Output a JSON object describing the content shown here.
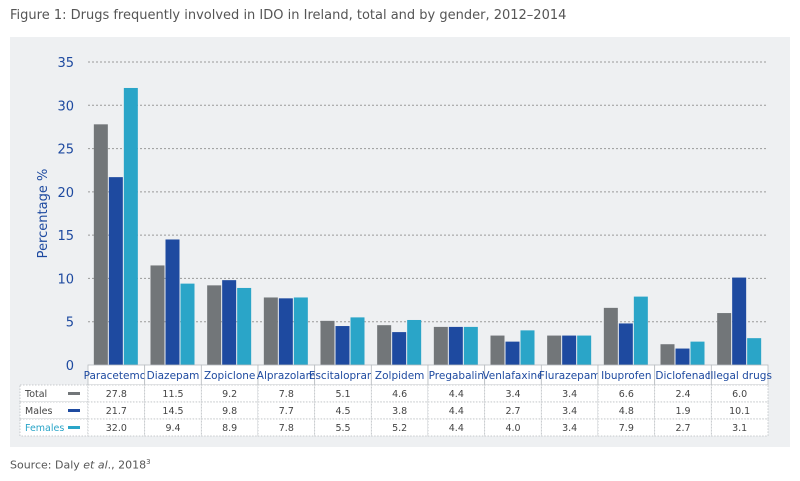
{
  "title": "Figure 1: Drugs frequently involved in IDO in Ireland, total and by gender, 2012–2014",
  "source": {
    "prefix": "Source: Daly ",
    "italic": "et al",
    "suffix": "., 2018",
    "superscript": "3"
  },
  "colors": {
    "Total": "#727679",
    "Males": "#1e4aa0",
    "Females": "#2aa5c8",
    "grid": "#9a9a9a",
    "axis_text": "#1e4aa0"
  },
  "chart_data": {
    "type": "bar",
    "ylabel": "Percentage %",
    "ylim": [
      0,
      35
    ],
    "yticks": [
      0,
      5,
      10,
      15,
      20,
      25,
      30,
      35
    ],
    "grid": true,
    "categories": [
      "Paracetemol",
      "Diazepam",
      "Zopiclone",
      "Alprazolam",
      "Escitalopram",
      "Zolpidem",
      "Pregabalin",
      "Venlafaxine",
      "Flurazepam",
      "Ibuprofen",
      "Diclofenac",
      "Illegal drugs"
    ],
    "series": [
      {
        "name": "Total",
        "values": [
          27.8,
          11.5,
          9.2,
          7.8,
          5.1,
          4.6,
          4.4,
          3.4,
          3.4,
          6.6,
          2.4,
          6.0
        ]
      },
      {
        "name": "Males",
        "values": [
          21.7,
          14.5,
          9.8,
          7.7,
          4.5,
          3.8,
          4.4,
          2.7,
          3.4,
          4.8,
          1.9,
          10.1
        ]
      },
      {
        "name": "Females",
        "values": [
          32.0,
          9.4,
          8.9,
          7.8,
          5.5,
          5.2,
          4.4,
          4.0,
          3.4,
          7.9,
          2.7,
          3.1
        ]
      }
    ],
    "table_values": [
      [
        "27.8",
        "11.5",
        "9.2",
        "7.8",
        "5.1",
        "4.6",
        "4.4",
        "3.4",
        "3.4",
        "6.6",
        "2.4",
        "6.0"
      ],
      [
        "21.7",
        "14.5",
        "9.8",
        "7.7",
        "4.5",
        "3.8",
        "4.4",
        "2.7",
        "3.4",
        "4.8",
        "1.9",
        "10.1"
      ],
      [
        "32.0",
        "9.4",
        "8.9",
        "7.8",
        "5.5",
        "5.2",
        "4.4",
        "4.0",
        "3.4",
        "7.9",
        "2.7",
        "3.1"
      ]
    ]
  }
}
